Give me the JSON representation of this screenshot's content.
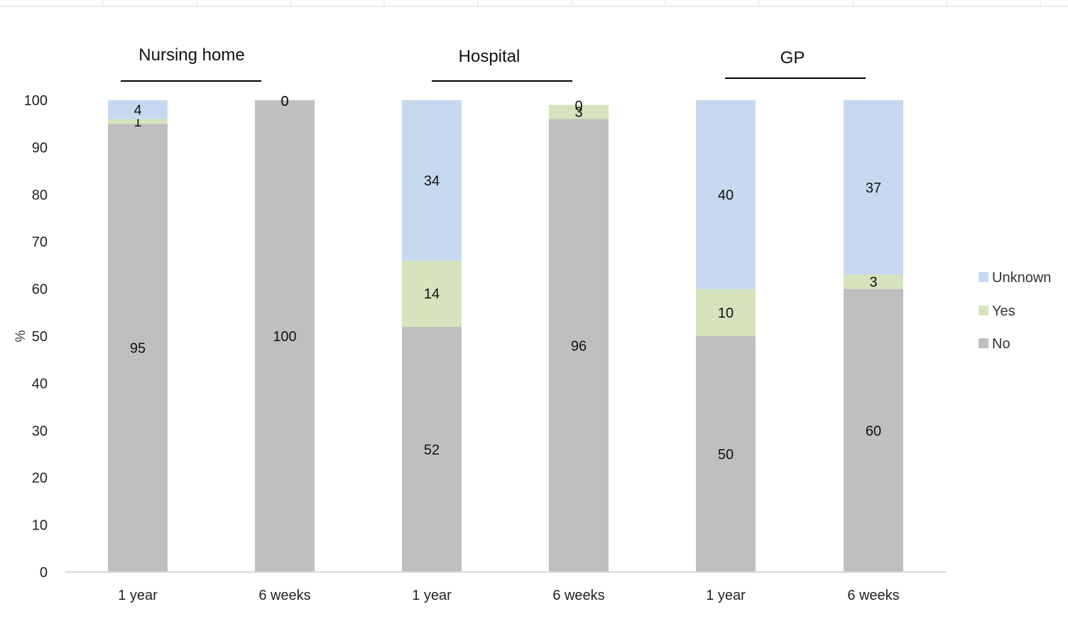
{
  "chart_data": {
    "type": "bar",
    "stacked": true,
    "ylabel": "%",
    "ylim": [
      0,
      100
    ],
    "yticks": [
      0,
      10,
      20,
      30,
      40,
      50,
      60,
      70,
      80,
      90,
      100
    ],
    "groups": [
      "Nursing home",
      "Hospital",
      "GP"
    ],
    "categories": [
      "1 year",
      "6 weeks",
      "1 year",
      "6 weeks",
      "1 year",
      "6 weeks"
    ],
    "category_group": [
      0,
      0,
      1,
      1,
      2,
      2
    ],
    "series": [
      {
        "name": "No",
        "color": "#bfbfbf",
        "values": [
          95,
          100,
          52,
          96,
          50,
          60
        ]
      },
      {
        "name": "Yes",
        "color": "#d6e3bc",
        "values": [
          1,
          0,
          14,
          3,
          10,
          3
        ]
      },
      {
        "name": "Unknown",
        "color": "#c6d9f0",
        "values": [
          4,
          0,
          34,
          0,
          40,
          37
        ]
      }
    ],
    "legend_order": [
      "Unknown",
      "Yes",
      "No"
    ],
    "legend_position": "right",
    "grid": false
  }
}
